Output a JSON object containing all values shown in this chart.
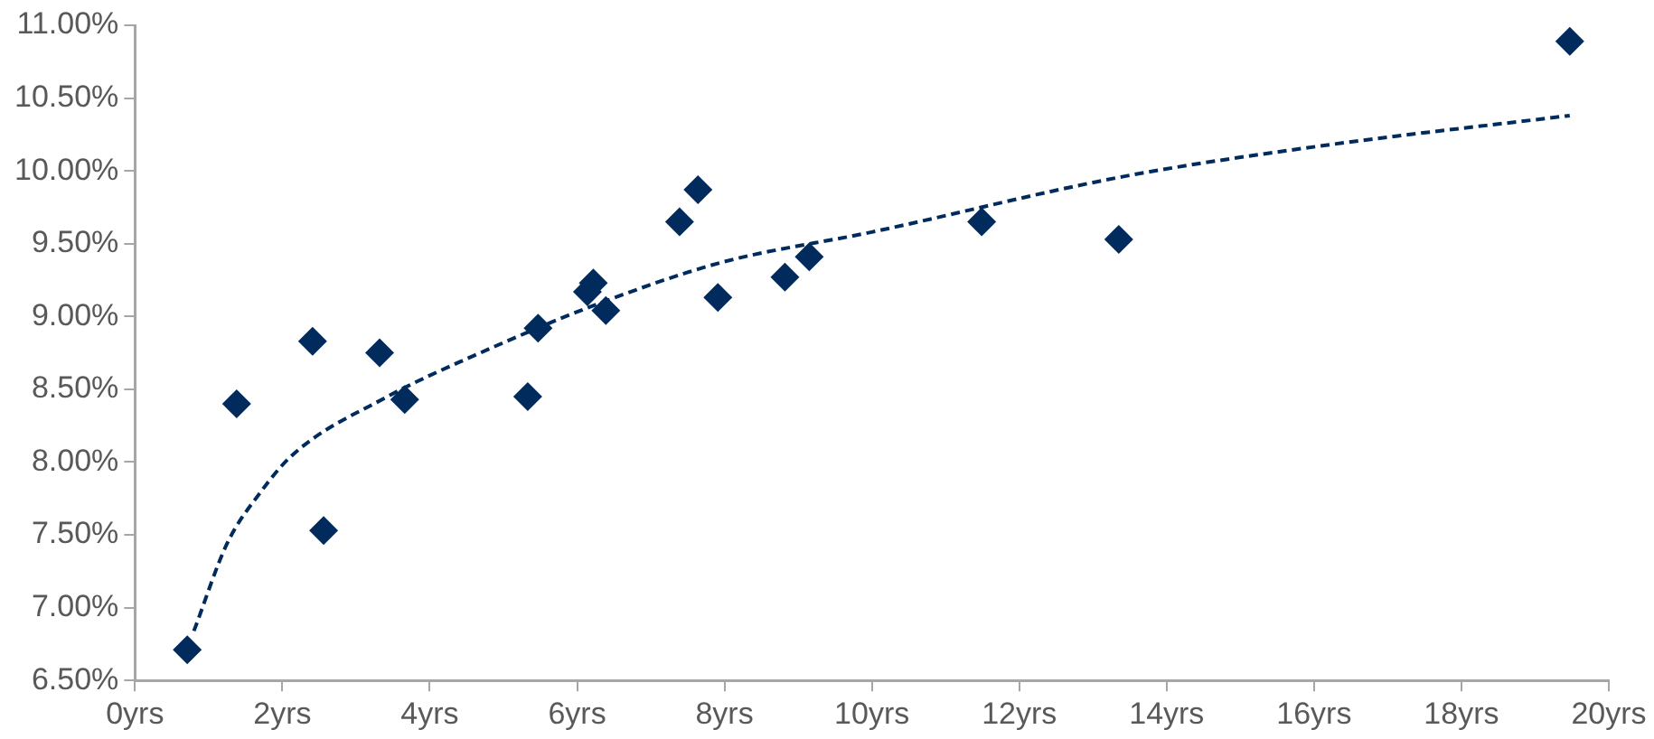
{
  "chart_data": {
    "type": "scatter",
    "marker": "diamond",
    "xlim": [
      0,
      20
    ],
    "xticks": [
      {
        "value": 0,
        "label": "0yrs"
      },
      {
        "value": 2,
        "label": "2yrs"
      },
      {
        "value": 4,
        "label": "4yrs"
      },
      {
        "value": 6,
        "label": "6yrs"
      },
      {
        "value": 8,
        "label": "8yrs"
      },
      {
        "value": 10,
        "label": "10yrs"
      },
      {
        "value": 12,
        "label": "12yrs"
      },
      {
        "value": 14,
        "label": "14yrs"
      },
      {
        "value": 16,
        "label": "16yrs"
      },
      {
        "value": 18,
        "label": "18yrs"
      },
      {
        "value": 20,
        "label": "20yrs"
      }
    ],
    "ylim": [
      6.5,
      11
    ],
    "yticks": [
      {
        "value": 6.5,
        "label": "6.50%"
      },
      {
        "value": 7,
        "label": "7.00%"
      },
      {
        "value": 7.5,
        "label": "7.50%"
      },
      {
        "value": 8,
        "label": "8.00%"
      },
      {
        "value": 8.5,
        "label": "8.50%"
      },
      {
        "value": 9,
        "label": "9.00%"
      },
      {
        "value": 9.5,
        "label": "9.50%"
      },
      {
        "value": 10,
        "label": "10.00%"
      },
      {
        "value": 10.5,
        "label": "10.50%"
      },
      {
        "value": 11,
        "label": "11.00%"
      }
    ],
    "series": [
      {
        "color": "#002b5c",
        "x": [
          0.71,
          1.38,
          2.41,
          2.56,
          3.32,
          3.66,
          5.33,
          5.47,
          6.14,
          6.22,
          6.39,
          7.39,
          7.64,
          7.91,
          8.82,
          9.15,
          11.49,
          13.35,
          19.47
        ],
        "values": [
          6.71,
          8.4,
          8.83,
          7.53,
          8.75,
          8.43,
          8.45,
          8.92,
          9.17,
          9.23,
          9.04,
          9.65,
          9.87,
          9.13,
          9.27,
          9.41,
          9.65,
          9.53,
          10.89
        ]
      },
      {
        "type": "line",
        "color": "#002b5c",
        "line_style": "dashed",
        "marker": "none",
        "x": [
          0.8,
          1.25,
          1.7,
          2.14,
          3.39,
          4.82,
          6.25,
          7.95,
          10,
          13.4,
          16.07,
          19.47
        ],
        "values": [
          6.84,
          7.44,
          7.79,
          8.05,
          8.44,
          8.78,
          9.08,
          9.37,
          9.58,
          9.96,
          10.17,
          10.38
        ]
      }
    ]
  }
}
